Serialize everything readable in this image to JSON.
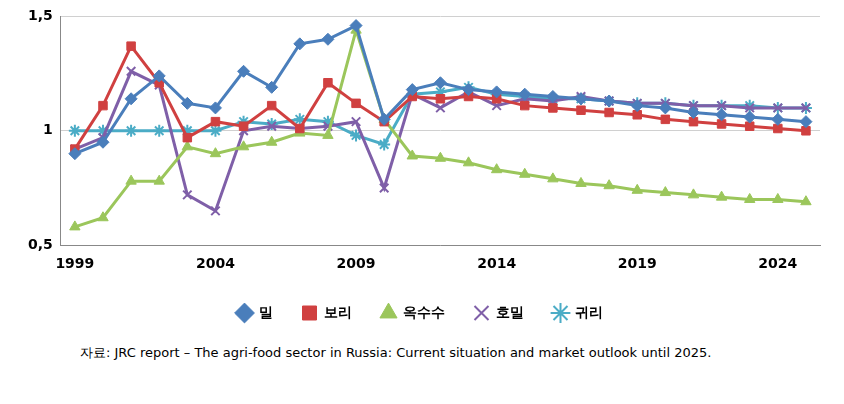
{
  "chart_data": {
    "type": "line",
    "source": "자료: JRC report – The agri-food sector in Russia: Current situation and market outlook until 2025.",
    "categories": [
      "1999",
      null,
      null,
      null,
      null,
      "2004",
      null,
      null,
      null,
      null,
      "2009",
      null,
      null,
      null,
      null,
      "2014",
      null,
      null,
      null,
      null,
      "2019",
      null,
      null,
      null,
      null,
      "2024",
      null
    ],
    "series": [
      {
        "name": "밀",
        "color": "#4a7ebb",
        "marker": "diamond",
        "values": [
          0.9,
          0.95,
          1.14,
          1.24,
          1.12,
          1.1,
          1.26,
          1.19,
          1.38,
          1.4,
          1.46,
          1.05,
          1.18,
          1.21,
          1.18,
          1.17,
          1.16,
          1.15,
          1.14,
          1.13,
          1.11,
          1.1,
          1.08,
          1.07,
          1.06,
          1.05,
          1.04
        ]
      },
      {
        "name": "보리",
        "color": "#d04040",
        "marker": "square",
        "values": [
          0.92,
          1.11,
          1.37,
          1.21,
          0.97,
          1.04,
          1.02,
          1.11,
          1.01,
          1.21,
          1.12,
          1.04,
          1.15,
          1.14,
          1.15,
          1.14,
          1.11,
          1.1,
          1.09,
          1.08,
          1.07,
          1.05,
          1.04,
          1.03,
          1.02,
          1.01,
          1.0
        ]
      },
      {
        "name": "옥수수",
        "color": "#9bc65b",
        "marker": "triangle",
        "values": [
          0.58,
          0.62,
          0.78,
          0.78,
          0.93,
          0.9,
          0.93,
          0.95,
          0.99,
          0.98,
          1.44,
          1.05,
          0.89,
          0.88,
          0.86,
          0.83,
          0.81,
          0.79,
          0.77,
          0.76,
          0.74,
          0.73,
          0.72,
          0.71,
          0.7,
          0.7,
          0.69
        ]
      },
      {
        "name": "호밀",
        "color": "#7f5fa8",
        "marker": "x",
        "values": [
          0.92,
          0.97,
          1.26,
          1.2,
          0.72,
          0.65,
          1.0,
          1.02,
          1.01,
          1.02,
          1.04,
          0.75,
          1.16,
          1.1,
          1.17,
          1.11,
          1.14,
          1.13,
          1.15,
          1.13,
          1.12,
          1.12,
          1.11,
          1.11,
          1.1,
          1.1,
          1.1
        ]
      },
      {
        "name": "귀리",
        "color": "#4bacc6",
        "marker": "star",
        "values": [
          1.0,
          1.0,
          1.0,
          1.0,
          1.0,
          1.0,
          1.04,
          1.03,
          1.05,
          1.04,
          0.98,
          0.94,
          1.16,
          1.17,
          1.19,
          1.16,
          1.15,
          1.14,
          1.14,
          1.13,
          1.12,
          1.12,
          1.11,
          1.11,
          1.11,
          1.1,
          1.1
        ]
      }
    ],
    "ylim": [
      0.5,
      1.5
    ],
    "yticks": [
      {
        "value": 0.5,
        "label": "0,5"
      },
      1,
      {
        "value": 1.5,
        "label": "1,5"
      }
    ],
    "grid": true,
    "legend": "bottom"
  }
}
